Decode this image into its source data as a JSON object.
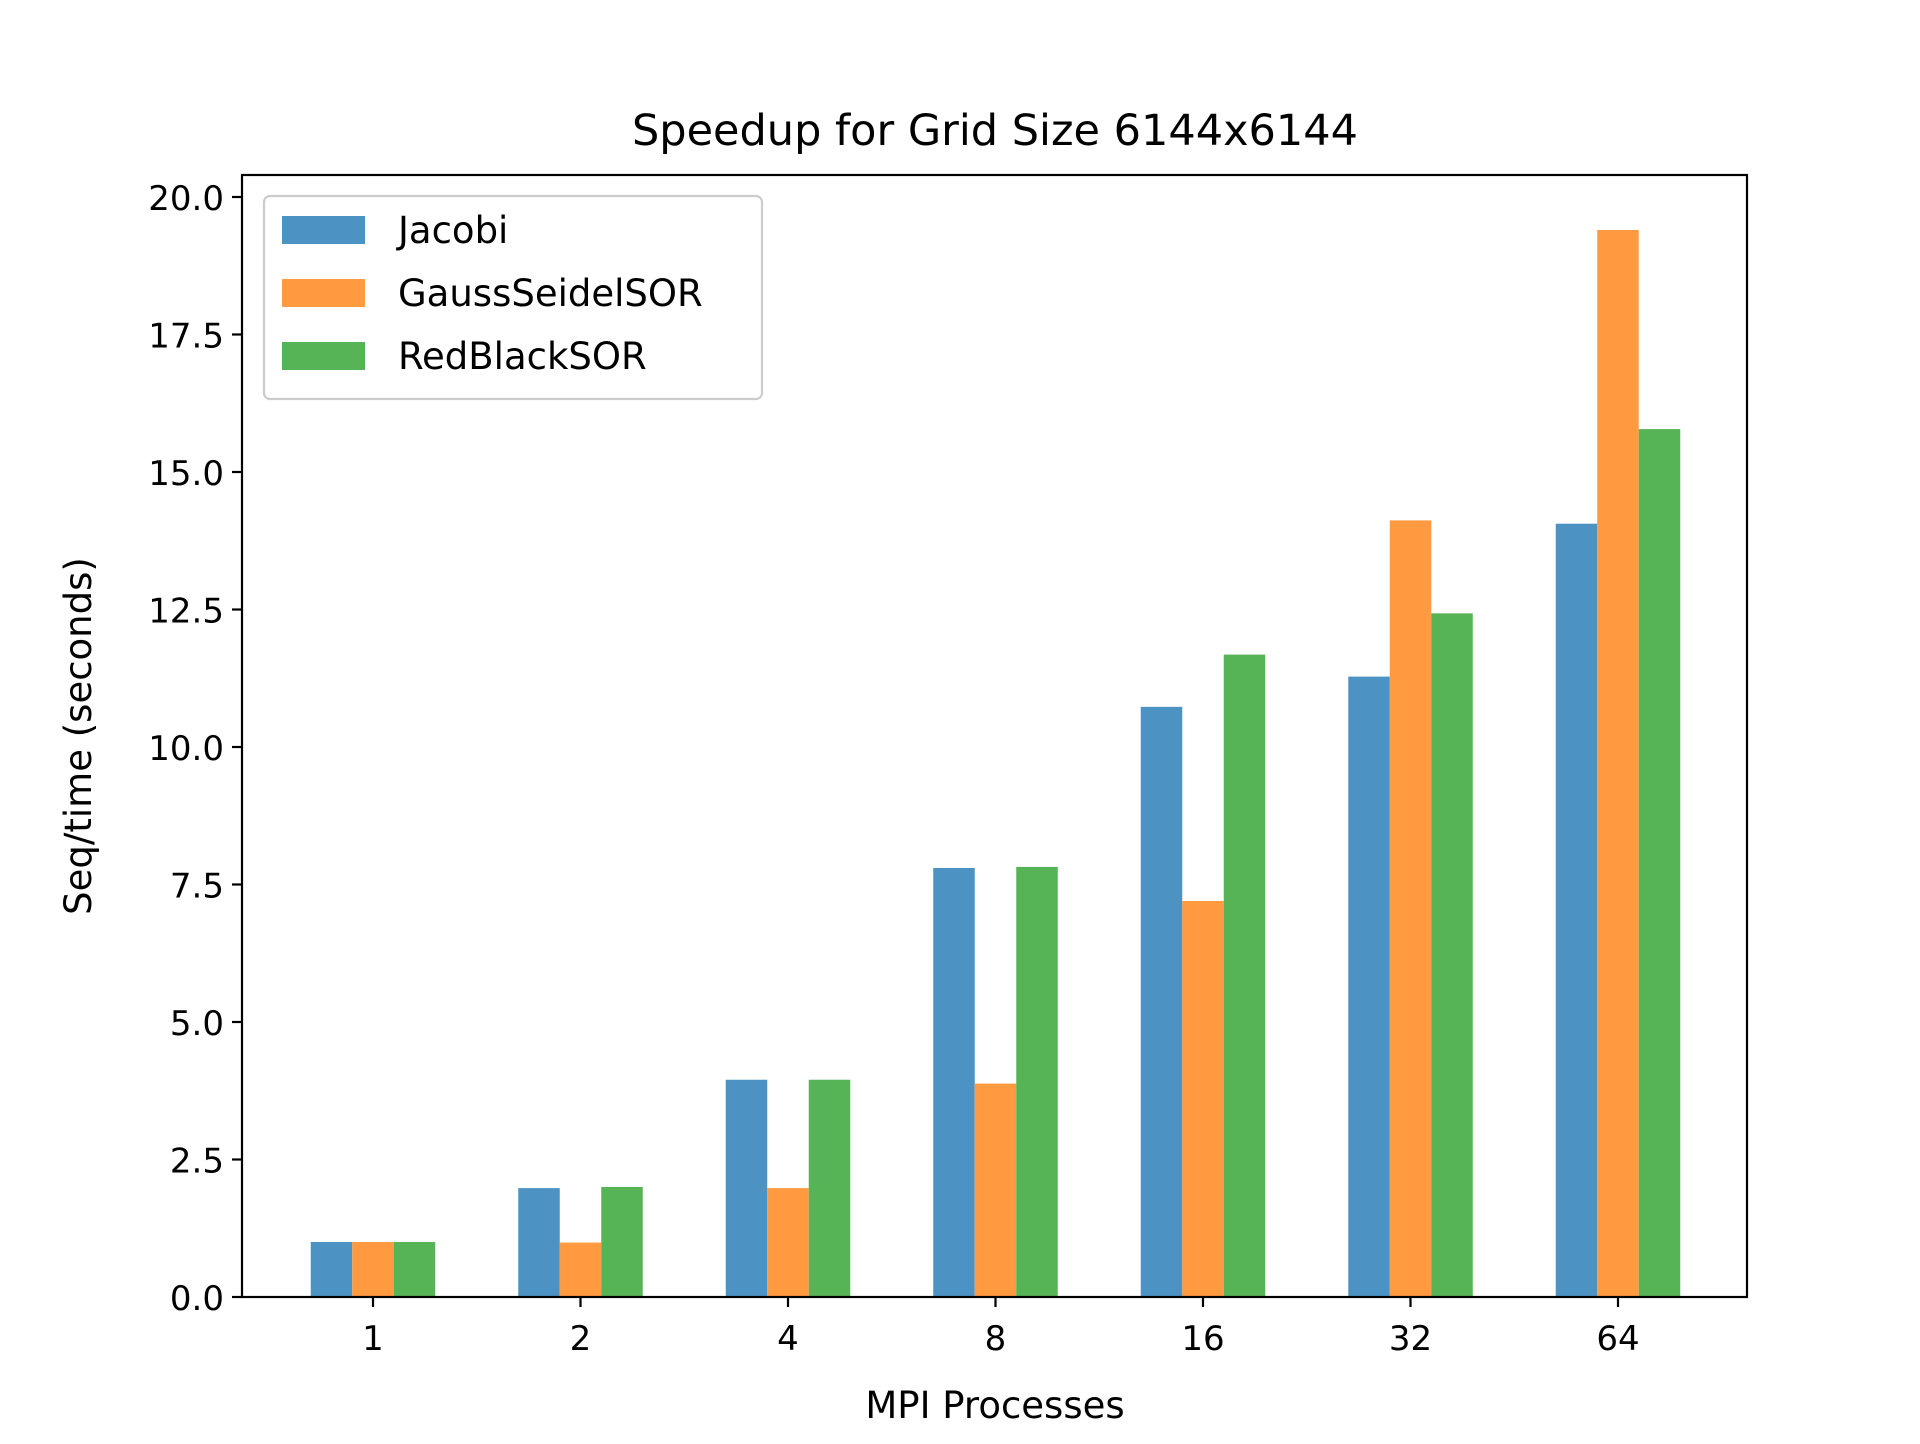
{
  "chart_data": {
    "type": "bar",
    "title": "Speedup for Grid Size 6144x6144",
    "xlabel": "MPI Processes",
    "ylabel": "Seq/time (seconds)",
    "categories": [
      "1",
      "2",
      "4",
      "8",
      "16",
      "32",
      "64"
    ],
    "ylim": [
      0,
      20.4
    ],
    "yticks": [
      "0.0",
      "2.5",
      "5.0",
      "7.5",
      "10.0",
      "12.5",
      "15.0",
      "17.5",
      "20.0"
    ],
    "grid": false,
    "legend_position": "top-left",
    "series": [
      {
        "name": "Jacobi",
        "color": "#4c93c3",
        "values": [
          1.0,
          1.98,
          3.95,
          7.8,
          10.73,
          11.28,
          14.06
        ]
      },
      {
        "name": "GaussSeidelSOR",
        "color": "#ff9a40",
        "values": [
          1.0,
          0.99,
          1.98,
          3.88,
          7.2,
          14.12,
          19.4
        ]
      },
      {
        "name": "RedBlackSOR",
        "color": "#56b356",
        "values": [
          1.0,
          2.0,
          3.95,
          7.82,
          11.68,
          12.43,
          15.78
        ]
      }
    ]
  }
}
